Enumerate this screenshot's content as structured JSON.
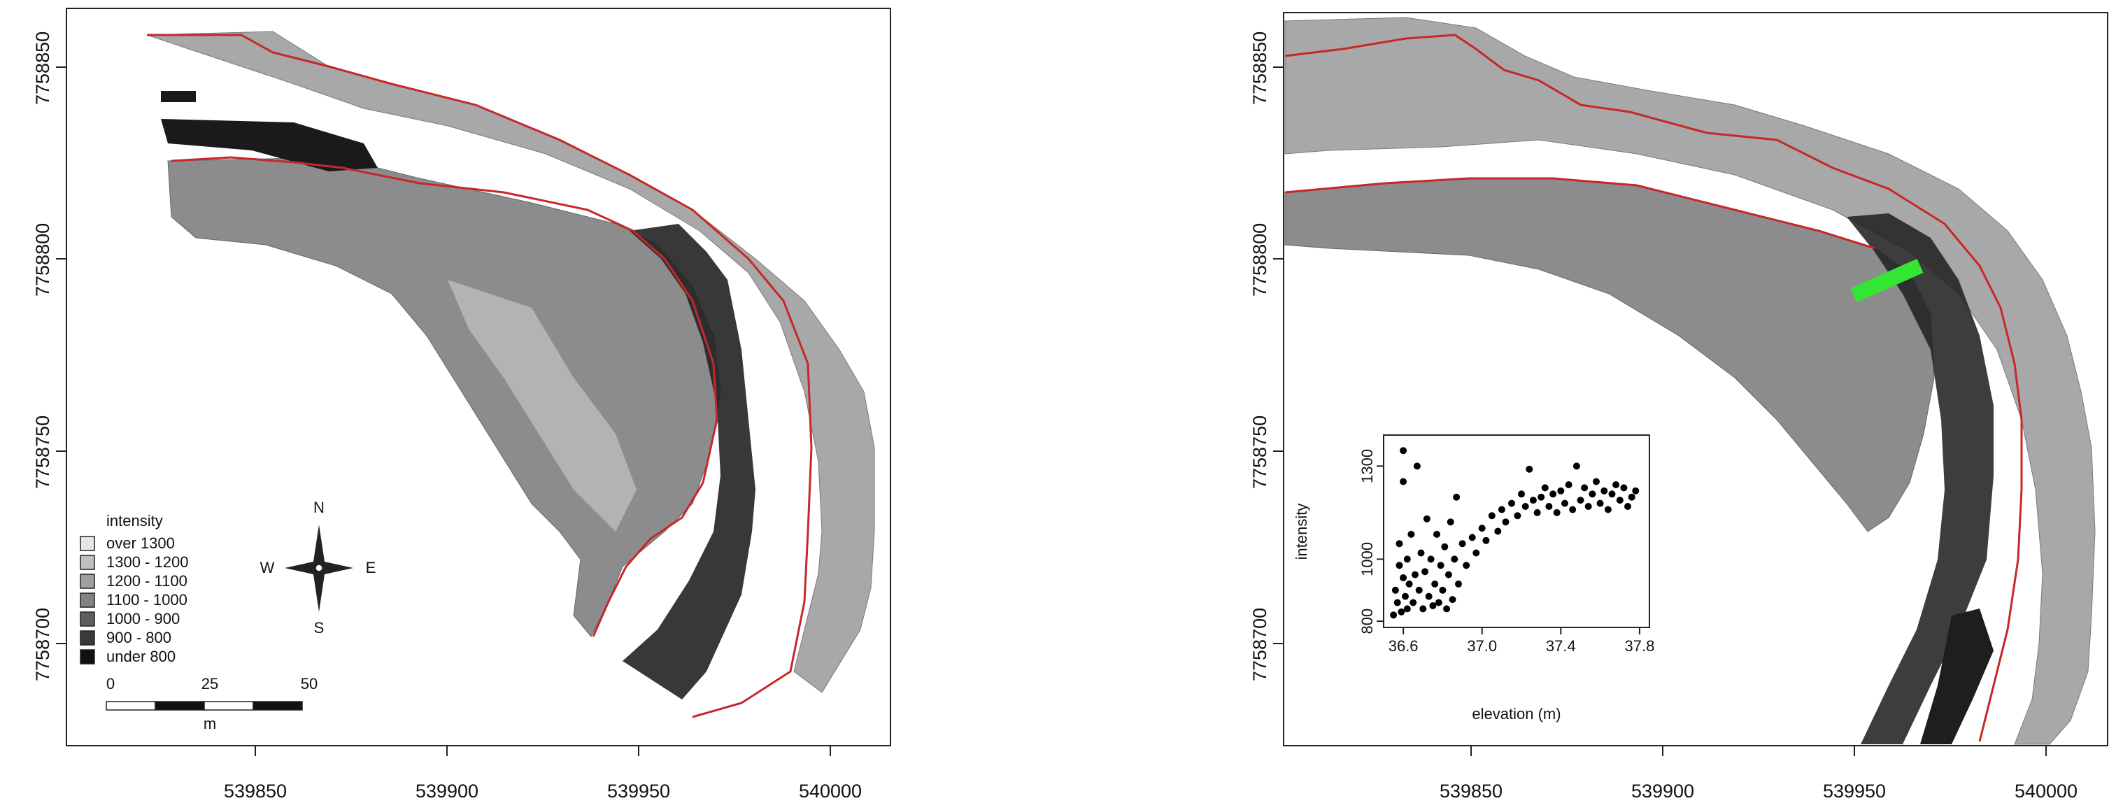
{
  "left_map": {
    "y_ticks": [
      "7758850",
      "7758800",
      "7758750",
      "7758700"
    ],
    "x_ticks": [
      "539850",
      "539900",
      "539950",
      "540000"
    ],
    "legend": {
      "title": "intensity",
      "items": [
        {
          "label": "over 1300",
          "color": "#e6e6e6"
        },
        {
          "label": "1300 - 1200",
          "color": "#bfbfbf"
        },
        {
          "label": "1200 - 1100",
          "color": "#a0a0a0"
        },
        {
          "label": "1100 - 1000",
          "color": "#828282"
        },
        {
          "label": "1000 - 900",
          "color": "#5e5e5e"
        },
        {
          "label": "900 - 800",
          "color": "#3a3a3a"
        },
        {
          "label": "under 800",
          "color": "#111111"
        }
      ]
    },
    "compass": {
      "n": "N",
      "s": "S",
      "e": "E",
      "w": "W"
    },
    "scale_bar": {
      "labels": [
        "0",
        "25",
        "50"
      ],
      "unit": "m"
    }
  },
  "right_map": {
    "y_ticks": [
      "7758850",
      "7758800",
      "7758750",
      "7758700"
    ],
    "x_ticks": [
      "539850",
      "539900",
      "539950",
      "540000"
    ],
    "transect_color": "#33e633"
  },
  "chart_data": {
    "type": "scatter",
    "xlabel": "elevation (m)",
    "ylabel": "intensity",
    "x_ticks": [
      "36.6",
      "37.0",
      "37.4",
      "37.8"
    ],
    "y_ticks": [
      "800",
      "1000",
      "1300"
    ],
    "xlim": [
      36.5,
      37.85
    ],
    "ylim": [
      780,
      1400
    ],
    "points": [
      [
        36.55,
        820
      ],
      [
        36.56,
        900
      ],
      [
        36.57,
        860
      ],
      [
        36.58,
        980
      ],
      [
        36.58,
        1050
      ],
      [
        36.59,
        830
      ],
      [
        36.6,
        940
      ],
      [
        36.6,
        1250
      ],
      [
        36.6,
        1350
      ],
      [
        36.61,
        880
      ],
      [
        36.62,
        1000
      ],
      [
        36.62,
        840
      ],
      [
        36.63,
        920
      ],
      [
        36.64,
        1080
      ],
      [
        36.65,
        860
      ],
      [
        36.66,
        950
      ],
      [
        36.67,
        1300
      ],
      [
        36.68,
        900
      ],
      [
        36.69,
        1020
      ],
      [
        36.7,
        840
      ],
      [
        36.71,
        960
      ],
      [
        36.72,
        1130
      ],
      [
        36.73,
        880
      ],
      [
        36.74,
        1000
      ],
      [
        36.75,
        850
      ],
      [
        36.76,
        920
      ],
      [
        36.77,
        1080
      ],
      [
        36.78,
        860
      ],
      [
        36.79,
        980
      ],
      [
        36.8,
        900
      ],
      [
        36.81,
        1040
      ],
      [
        36.82,
        840
      ],
      [
        36.83,
        950
      ],
      [
        36.84,
        1120
      ],
      [
        36.85,
        870
      ],
      [
        36.86,
        1000
      ],
      [
        36.87,
        1200
      ],
      [
        36.88,
        920
      ],
      [
        36.9,
        1050
      ],
      [
        36.92,
        980
      ],
      [
        36.95,
        1070
      ],
      [
        36.97,
        1020
      ],
      [
        37.0,
        1100
      ],
      [
        37.02,
        1060
      ],
      [
        37.05,
        1140
      ],
      [
        37.08,
        1090
      ],
      [
        37.1,
        1160
      ],
      [
        37.12,
        1120
      ],
      [
        37.15,
        1180
      ],
      [
        37.18,
        1140
      ],
      [
        37.2,
        1210
      ],
      [
        37.22,
        1170
      ],
      [
        37.24,
        1290
      ],
      [
        37.26,
        1190
      ],
      [
        37.28,
        1150
      ],
      [
        37.3,
        1200
      ],
      [
        37.32,
        1230
      ],
      [
        37.34,
        1170
      ],
      [
        37.36,
        1210
      ],
      [
        37.38,
        1150
      ],
      [
        37.4,
        1220
      ],
      [
        37.42,
        1180
      ],
      [
        37.44,
        1240
      ],
      [
        37.46,
        1160
      ],
      [
        37.48,
        1300
      ],
      [
        37.5,
        1190
      ],
      [
        37.52,
        1230
      ],
      [
        37.54,
        1170
      ],
      [
        37.56,
        1210
      ],
      [
        37.58,
        1250
      ],
      [
        37.6,
        1180
      ],
      [
        37.62,
        1220
      ],
      [
        37.64,
        1160
      ],
      [
        37.66,
        1210
      ],
      [
        37.68,
        1240
      ],
      [
        37.7,
        1190
      ],
      [
        37.72,
        1230
      ],
      [
        37.74,
        1170
      ],
      [
        37.76,
        1200
      ],
      [
        37.78,
        1220
      ]
    ]
  }
}
